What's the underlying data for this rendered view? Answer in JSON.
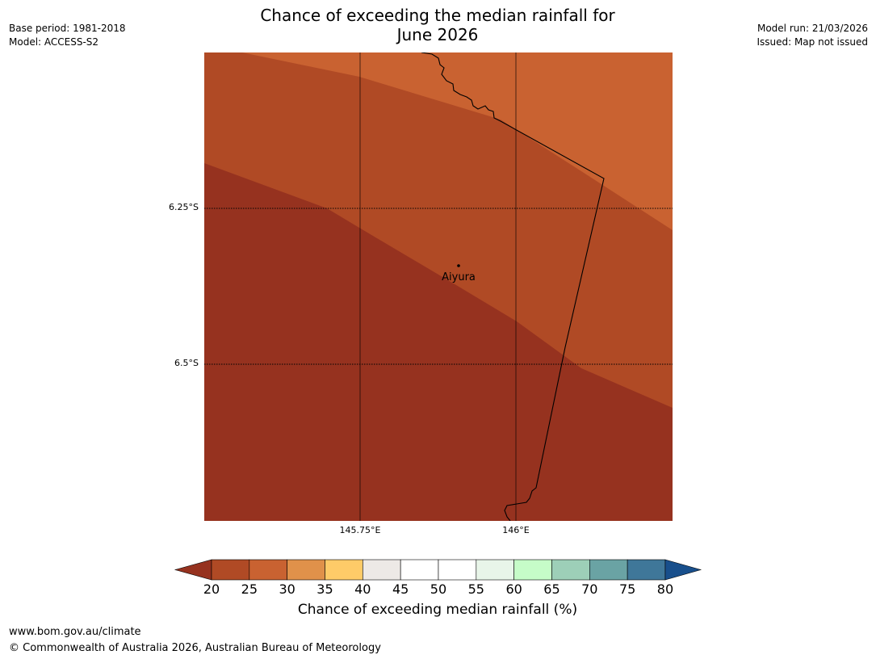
{
  "title": {
    "line1": "Chance of exceeding the median rainfall for",
    "line2": "June 2026"
  },
  "meta": {
    "base_period": "Base period: 1981-2018",
    "model": "Model: ACCESS-S2",
    "model_run": "Model run: 21/03/2026",
    "issued": "Issued: Map not issued"
  },
  "map": {
    "lat_ticks": [
      "6.25°S",
      "6.5°S"
    ],
    "lon_ticks": [
      "145.75°E",
      "146°E"
    ],
    "place": "Aiyura",
    "colors": {
      "band_20_25": "#96321f",
      "band_25_30": "#b04a25",
      "band_30_35": "#c96231"
    }
  },
  "colorbar": {
    "labels": [
      "20",
      "25",
      "30",
      "35",
      "40",
      "45",
      "50",
      "55",
      "60",
      "65",
      "70",
      "75",
      "80"
    ],
    "colors": [
      "#b04a25",
      "#c96231",
      "#e0914a",
      "#fecb68",
      "#ede9e6",
      "#ffffff",
      "#ffffff",
      "#e8f5e9",
      "#c6fcc8",
      "#9dcfb8",
      "#6aa3a4",
      "#3f7799"
    ],
    "under_color": "#96321f",
    "over_color": "#184f8c",
    "title": "Chance of exceeding median rainfall (%)"
  },
  "footer": {
    "url": "www.bom.gov.au/climate",
    "copyright": "© Commonwealth of Australia 2026, Australian Bureau of Meteorology"
  }
}
